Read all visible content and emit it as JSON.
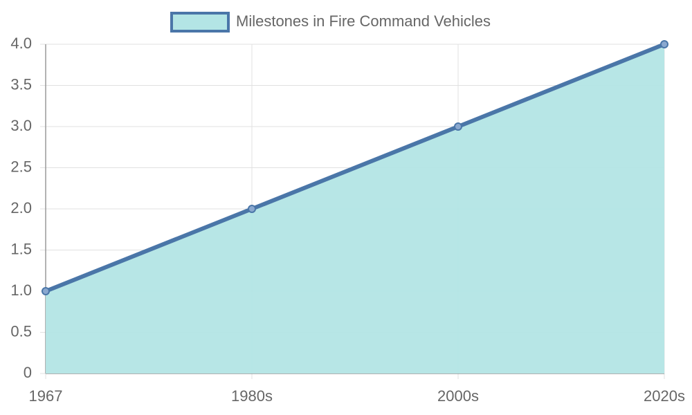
{
  "chart_data": {
    "type": "line",
    "categories": [
      "1967",
      "1980s",
      "2000s",
      "2020s"
    ],
    "series": [
      {
        "name": "Milestones in Fire Command Vehicles",
        "color": "#4a76a8",
        "fill_color": "#b3e5e5",
        "values": [
          1,
          2,
          3,
          4
        ]
      }
    ],
    "fill": true,
    "ylim": [
      0,
      4
    ],
    "yticks": [
      0,
      0.5,
      {
        "value": 1,
        "label": "1.0"
      },
      1.5,
      {
        "value": 2,
        "label": "2.0"
      },
      2.5,
      {
        "value": 3,
        "label": "3.0"
      },
      3.5,
      {
        "value": 4,
        "label": "4.0"
      }
    ],
    "grid": true,
    "legend": "top"
  }
}
